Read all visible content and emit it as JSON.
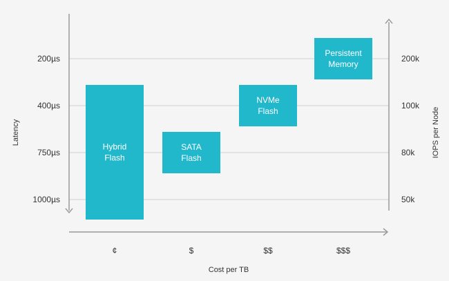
{
  "chart_data": {
    "type": "bar",
    "title": "",
    "xlabel": "Cost per TB",
    "ylabel_left": "Latency",
    "ylabel_right": "IOPS per Node",
    "categories": [
      "¢",
      "$",
      "$$",
      "$$$"
    ],
    "left_ticks": [
      "200µs",
      "400µs",
      "750µs",
      "1000µs"
    ],
    "right_ticks": [
      "200k",
      "100k",
      "80k",
      "50k"
    ],
    "grid": true,
    "bar_color": "#22b8cc",
    "bars": [
      {
        "category": "¢",
        "label_lines": [
          "Hybrid",
          "Flash"
        ],
        "latency_range": [
          "1000µs+",
          "300µs"
        ]
      },
      {
        "category": "$",
        "label_lines": [
          "SATA",
          "Flash"
        ],
        "latency_range": [
          "850µs",
          "600µs"
        ]
      },
      {
        "category": "$$",
        "label_lines": [
          "NVMe",
          "Flash"
        ],
        "latency_range": [
          "500µs",
          "300µs"
        ]
      },
      {
        "category": "$$$",
        "label_lines": [
          "Persistent",
          "Memory"
        ],
        "latency_range": [
          "250µs",
          "150µs"
        ]
      }
    ]
  }
}
